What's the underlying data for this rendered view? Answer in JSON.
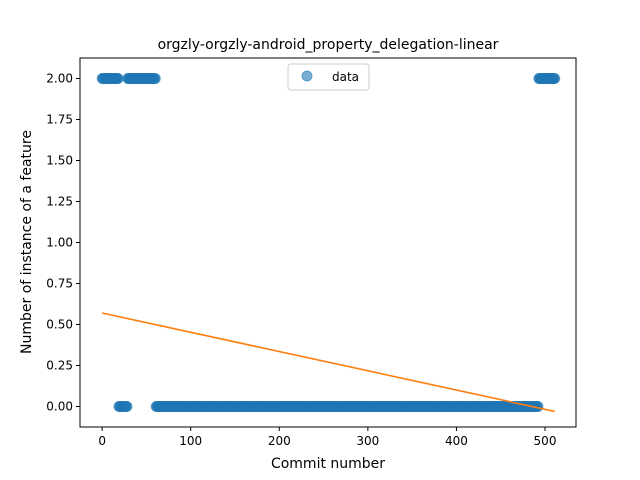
{
  "chart_data": {
    "type": "scatter",
    "title": "orgzly-orgzly-android_property_delegation-linear",
    "xlabel": "Commit number",
    "ylabel": "Number of instance of a feature",
    "xlim": [
      -25,
      535
    ],
    "ylim": [
      -0.125,
      2.125
    ],
    "xticks": [
      "0",
      "100",
      "200",
      "300",
      "400",
      "500"
    ],
    "yticks": [
      "0.00",
      "0.25",
      "0.50",
      "0.75",
      "1.00",
      "1.25",
      "1.50",
      "1.75",
      "2.00"
    ],
    "legend": {
      "position": "top-center",
      "entries": [
        "data"
      ]
    },
    "series": [
      {
        "name": "data",
        "kind": "scatter",
        "color": "#1f77b4",
        "segments": [
          {
            "x_start": 0,
            "x_end": 18,
            "step": 1,
            "y": 2
          },
          {
            "x_start": 19,
            "x_end": 28,
            "step": 1,
            "y": 0
          },
          {
            "x_start": 29,
            "x_end": 60,
            "step": 1,
            "y": 2
          },
          {
            "x_start": 61,
            "x_end": 492,
            "step": 1,
            "y": 0
          },
          {
            "x_start": 493,
            "x_end": 511,
            "step": 1,
            "y": 2
          }
        ]
      },
      {
        "name": "linear",
        "kind": "line",
        "color": "#ff7f0e",
        "x": [
          0,
          511
        ],
        "y": [
          0.57,
          -0.03
        ]
      }
    ]
  }
}
